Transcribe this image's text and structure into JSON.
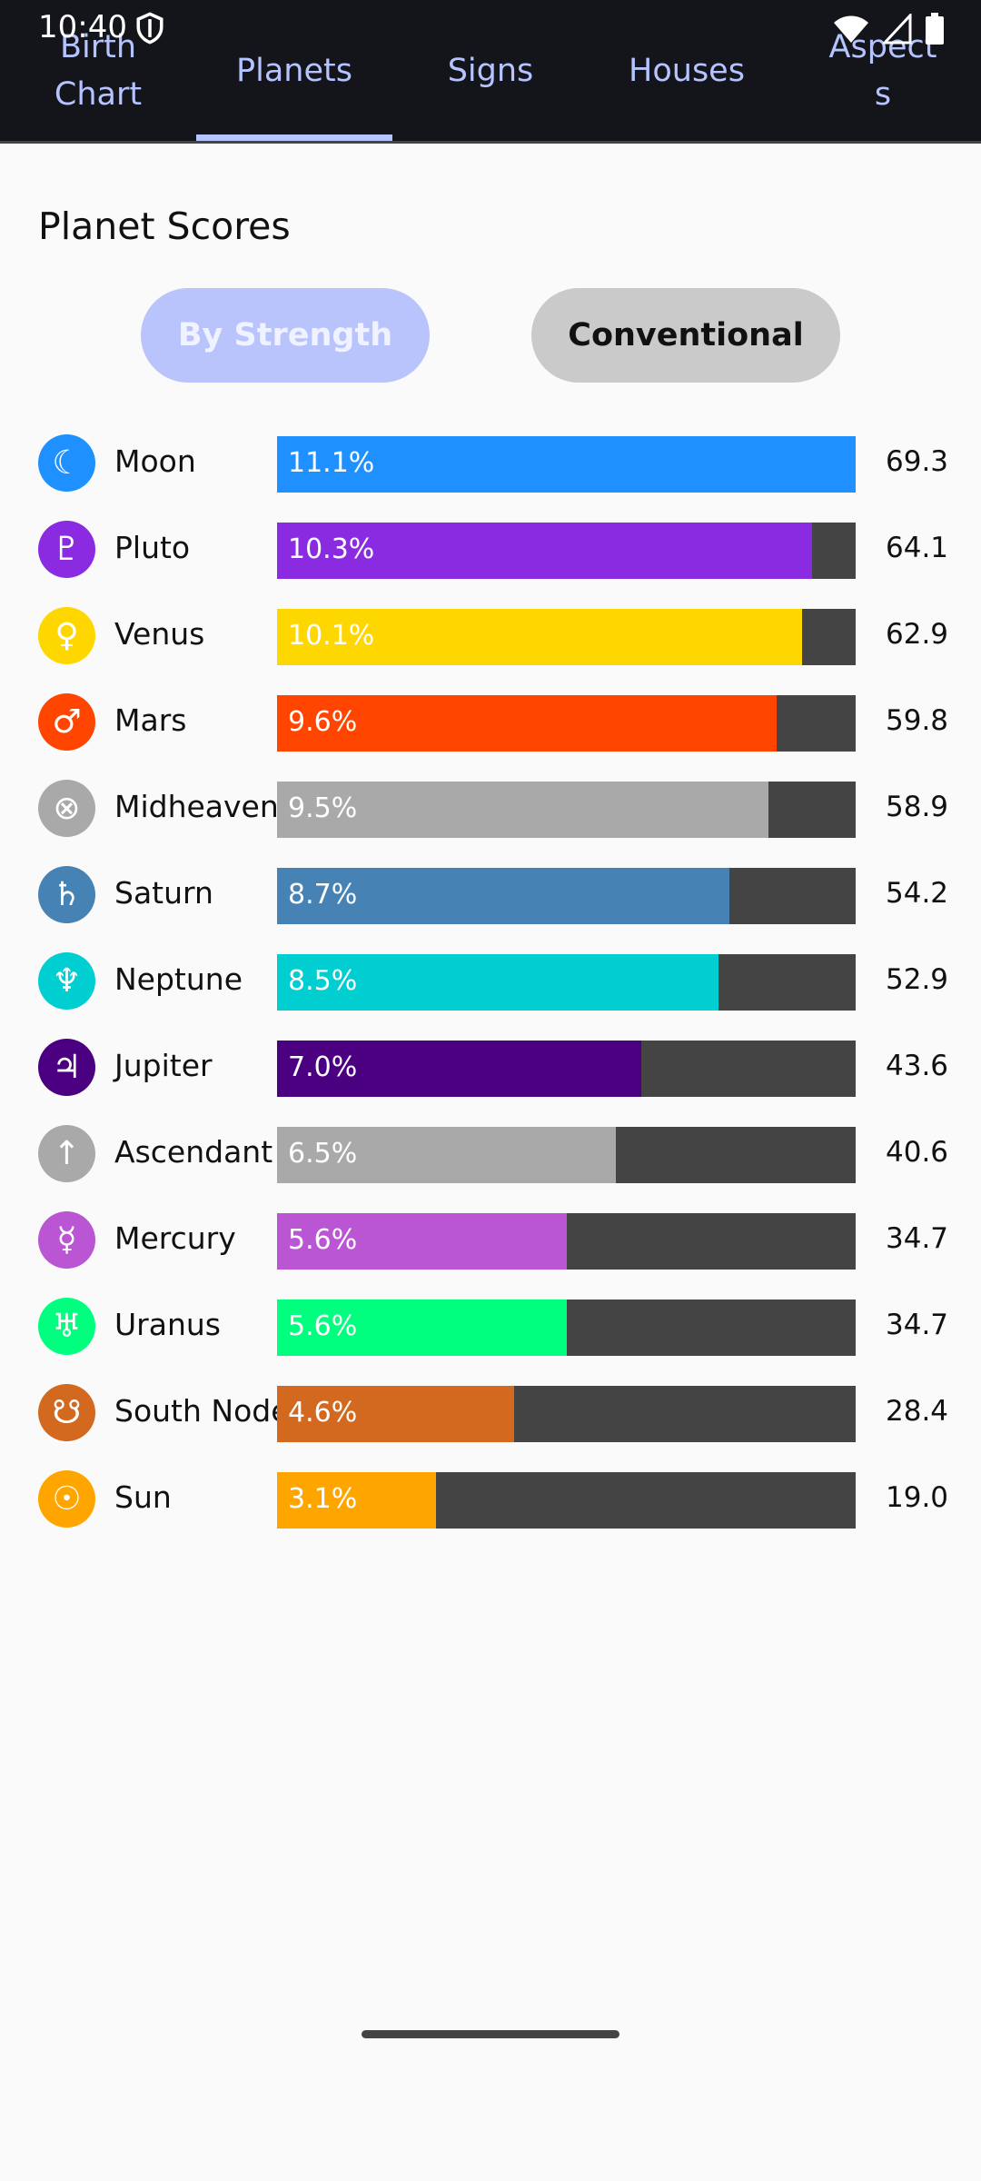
{
  "status_bar": {
    "time": "10:40",
    "icons": [
      "shield-icon",
      "wifi-icon",
      "signal-icon",
      "battery-icon"
    ]
  },
  "tabs": [
    {
      "label": "Birth\nChart",
      "selected": false
    },
    {
      "label": "Planets",
      "selected": true
    },
    {
      "label": "Signs",
      "selected": false
    },
    {
      "label": "Houses",
      "selected": false
    },
    {
      "label": "Aspect\ns",
      "selected": false
    }
  ],
  "section_title": "Planet Scores",
  "toggles": {
    "strength_label": "By Strength",
    "conventional_label": "Conventional",
    "selected": "By Strength"
  },
  "colors": {
    "tab_accent": "#b5c4ff",
    "track": "#444444"
  },
  "planets": [
    {
      "name": "Moon",
      "symbol": "☾",
      "icon": "moon-icon",
      "pct": "11.1%",
      "score": "69.3",
      "value": 69.3,
      "color": "#1e90ff"
    },
    {
      "name": "Pluto",
      "symbol": "♇",
      "icon": "pluto-icon",
      "pct": "10.3%",
      "score": "64.1",
      "value": 64.1,
      "color": "#8a2be2"
    },
    {
      "name": "Venus",
      "symbol": "♀",
      "icon": "venus-icon",
      "pct": "10.1%",
      "score": "62.9",
      "value": 62.9,
      "color": "#ffd700"
    },
    {
      "name": "Mars",
      "symbol": "♂",
      "icon": "mars-icon",
      "pct": "9.6%",
      "score": "59.8",
      "value": 59.8,
      "color": "#ff4500"
    },
    {
      "name": "Midheaven",
      "symbol": "⊗",
      "icon": "midheaven-icon",
      "pct": "9.5%",
      "score": "58.9",
      "value": 58.9,
      "color": "#a9a9a9"
    },
    {
      "name": "Saturn",
      "symbol": "♄",
      "icon": "saturn-icon",
      "pct": "8.7%",
      "score": "54.2",
      "value": 54.2,
      "color": "#4682b4"
    },
    {
      "name": "Neptune",
      "symbol": "♆",
      "icon": "neptune-icon",
      "pct": "8.5%",
      "score": "52.9",
      "value": 52.9,
      "color": "#00ced1"
    },
    {
      "name": "Jupiter",
      "symbol": "♃",
      "icon": "jupiter-icon",
      "pct": "7.0%",
      "score": "43.6",
      "value": 43.6,
      "color": "#4b0082"
    },
    {
      "name": "Ascendant",
      "symbol": "↑",
      "icon": "ascendant-icon",
      "pct": "6.5%",
      "score": "40.6",
      "value": 40.6,
      "color": "#a9a9a9"
    },
    {
      "name": "Mercury",
      "symbol": "☿",
      "icon": "mercury-icon",
      "pct": "5.6%",
      "score": "34.7",
      "value": 34.7,
      "color": "#ba55d3"
    },
    {
      "name": "Uranus",
      "symbol": "♅",
      "icon": "uranus-icon",
      "pct": "5.6%",
      "score": "34.7",
      "value": 34.7,
      "color": "#00ff7f"
    },
    {
      "name": "South Node",
      "symbol": "☋",
      "icon": "south-node-icon",
      "pct": "4.6%",
      "score": "28.4",
      "value": 28.4,
      "color": "#d2691e"
    },
    {
      "name": "Sun",
      "symbol": "☉",
      "icon": "sun-icon",
      "pct": "3.1%",
      "score": "19.0",
      "value": 19.0,
      "color": "#ffa500"
    }
  ]
}
